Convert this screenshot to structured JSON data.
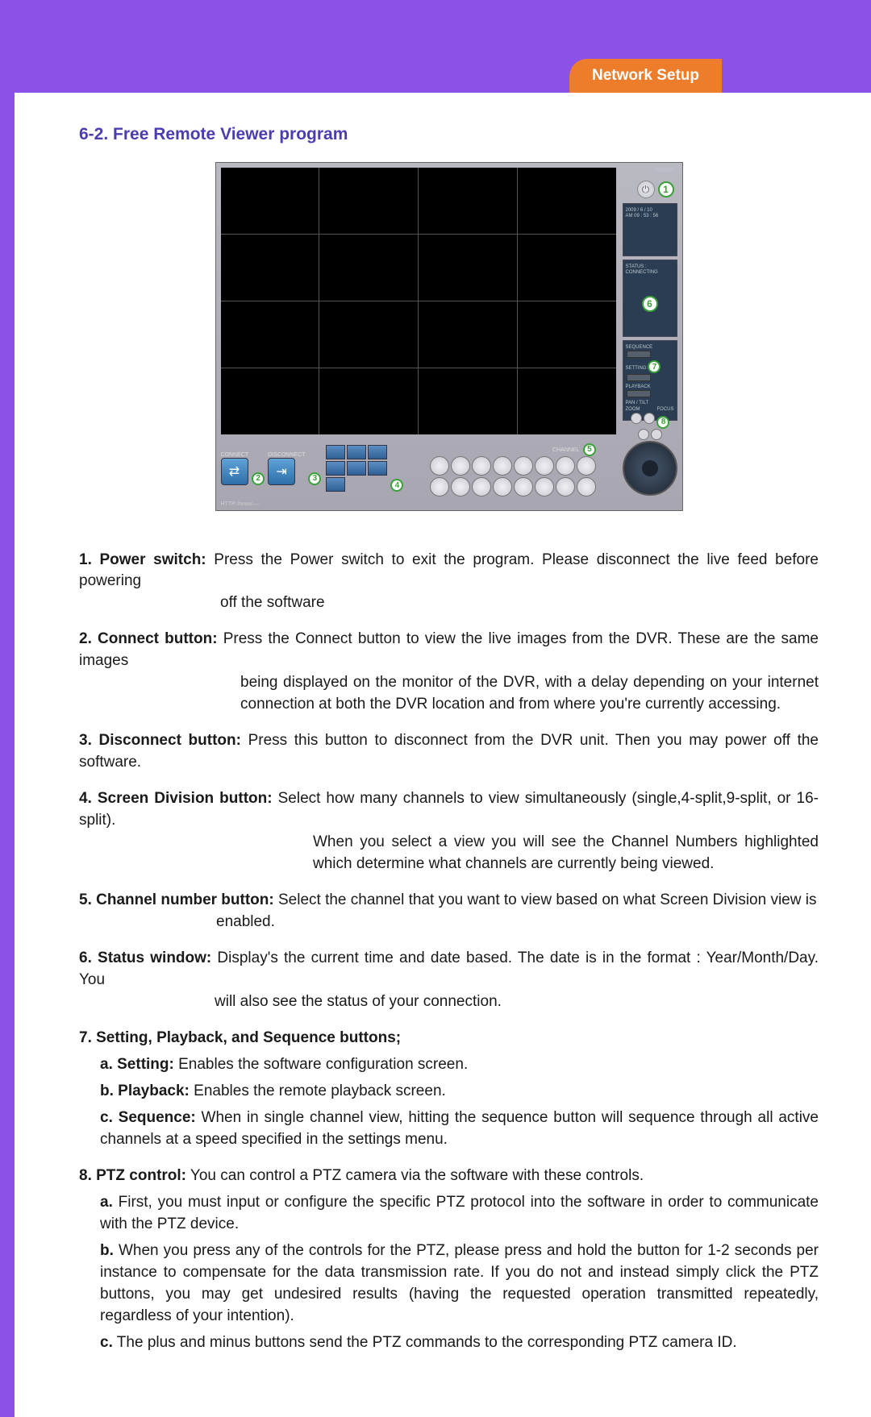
{
  "header": {
    "tab_label": "Network Setup",
    "tab_bg": "#ed7d2b",
    "purple": "#8c52e8"
  },
  "section_title": "6-2. Free Remote Viewer program",
  "screenshot": {
    "side": {
      "power_label": "POWER",
      "date": "2009 / 6 / 10",
      "time": "AM 09 : 53 : 56",
      "status_label": "STATUS :",
      "status_value": "CONNECTING",
      "seq_label": "SEQUENCE",
      "setting_label": "SETTING",
      "playback_label": "PLAYBACK",
      "pantilt_label": "PAN / TILT",
      "zoom_label": "ZOOM",
      "focus_label": "FOCUS"
    },
    "bottom": {
      "connect_label": "CONNECT",
      "disconnect_label": "DISCONNECT",
      "channel_label": "CHANNEL",
      "footer": "HTTP://www.—"
    },
    "callouts": {
      "c1": "1",
      "c2": "2",
      "c3": "3",
      "c4": "4",
      "c5": "5",
      "c6": "6",
      "c7": "7",
      "c8": "8"
    }
  },
  "items": [
    {
      "lead": "1. Power switch:",
      "text_first": " Press the Power switch to exit the program. Please disconnect the live feed before powering",
      "cont": "off the software",
      "cont_class": "sm"
    },
    {
      "lead": "2. Connect button:",
      "text_first": " Press the Connect button to view the live images from the DVR. These are the same  images",
      "cont": "being displayed on the monitor of the DVR, with a delay depending on your internet connection at both the DVR location and from where you're currently accessing.",
      "cont_class": "md"
    },
    {
      "lead": "3. Disconnect button:",
      "text_first": " Press this button to disconnect from the DVR unit. Then you may power off the software."
    },
    {
      "lead": "4. Screen Division button:",
      "text_first": " Select how many channels to view simultaneously (single,4-split,9-split, or 16-split).",
      "cont": "When you select a view you will see the Channel Numbers highlighted which determine what channels are currently being viewed.",
      "cont_class": "lg"
    },
    {
      "lead": "5. Channel number button:",
      "text_first": " Select the channel that you want to view based on what Screen Division view is",
      "cont": "enabled.",
      "cont_class": "ch"
    },
    {
      "lead": "6. Status window:",
      "text_first": " Display's the current time and date based. The date is in the format : Year/Month/Day. You",
      "cont": "will also see the status of your connection.",
      "cont_class": "xs"
    },
    {
      "lead": "7. Setting, Playback, and Sequence buttons;",
      "subs": [
        {
          "lead": "a. Setting:",
          "text": " Enables the software configuration screen."
        },
        {
          "lead": "b. Playback:",
          "text": " Enables the remote playback screen."
        },
        {
          "lead": "c. Sequence:",
          "text": " When in single channel view, hitting the sequence button will sequence through all active channels at a speed specified in the settings menu."
        }
      ]
    },
    {
      "lead": "8. PTZ control:",
      "text_first": " You can control a PTZ camera via the software with these controls.",
      "subs": [
        {
          "lead": "a.",
          "text": " First, you must input or configure the specific PTZ protocol into the software in order to communicate with the PTZ device."
        },
        {
          "lead": "b.",
          "text": " When you press any of the controls for the PTZ, please press and hold the button for 1-2 seconds per instance to compensate for the data transmission rate. If you do not and instead simply click the PTZ buttons, you may get undesired results (having the requested operation transmitted repeatedly, regardless of your intention)."
        },
        {
          "lead": "c.",
          "text": " The plus and minus buttons send the PTZ commands to the corresponding PTZ camera ID."
        }
      ]
    }
  ]
}
